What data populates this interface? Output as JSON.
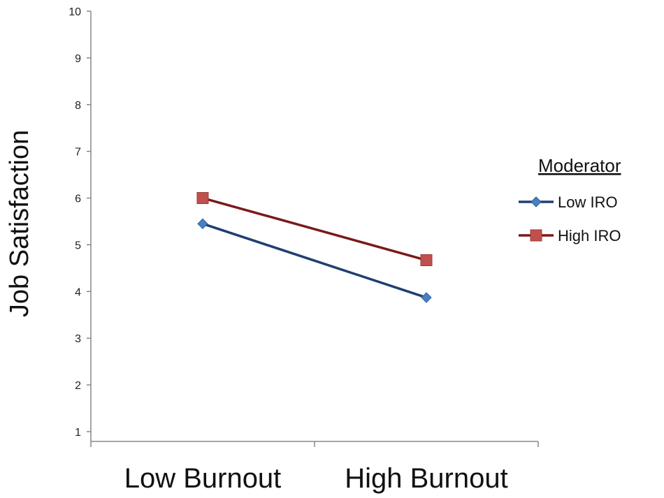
{
  "chart_data": {
    "type": "line",
    "categories": [
      "Low Burnout",
      "High Burnout"
    ],
    "series": [
      {
        "name": "Low IRO",
        "values": [
          5.45,
          3.87
        ],
        "color": "#1f3f73",
        "marker_color": "#4a7fc1",
        "marker": "diamond"
      },
      {
        "name": "High IRO",
        "values": [
          6.0,
          4.67
        ],
        "color": "#7a1a1a",
        "marker_color": "#c0504d",
        "marker": "square"
      }
    ],
    "ylabel": "Job Satisfaction",
    "xlabel": "",
    "ylim": [
      1,
      10
    ],
    "yticks": [
      1,
      2,
      3,
      4,
      5,
      6,
      7,
      8,
      9,
      10
    ],
    "grid": false,
    "legend": {
      "title": "Moderator",
      "placement": "right"
    }
  }
}
